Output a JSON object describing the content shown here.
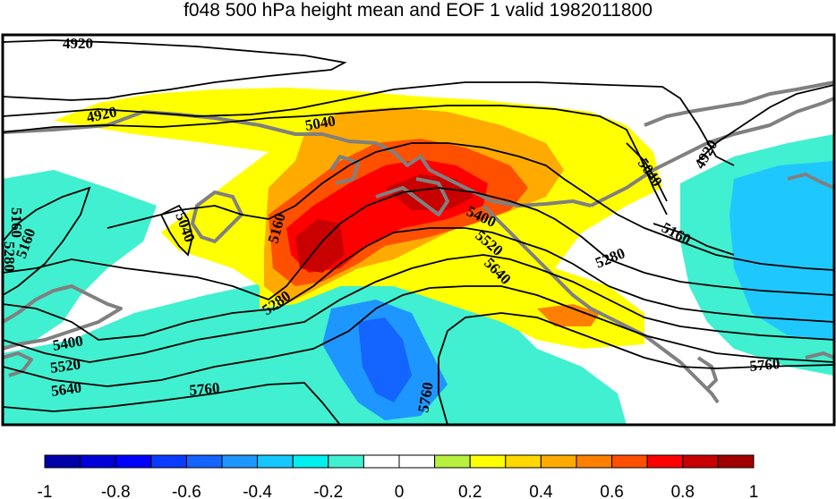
{
  "title": "f048 500 hPa height mean and EOF 1 valid 1982011800",
  "colorbar": {
    "ticks": [
      "-1",
      "-0.8",
      "-0.6",
      "-0.4",
      "-0.2",
      "0",
      "0.2",
      "0.4",
      "0.6",
      "0.8",
      "1"
    ],
    "colors": [
      "#0000a8",
      "#0000d8",
      "#0000ff",
      "#0a3cff",
      "#1464ff",
      "#1e96ff",
      "#14c8ff",
      "#00f0f0",
      "#40f0d0",
      "#ffffff",
      "#ffffff",
      "#b8f040",
      "#ffff00",
      "#ffd800",
      "#ffaa00",
      "#ff8000",
      "#ff5000",
      "#ff0000",
      "#c80000",
      "#a00000"
    ]
  },
  "contour_labels": [
    "4920",
    "4920",
    "5040",
    "5040",
    "5040",
    "5160",
    "5160",
    "5160",
    "5160",
    "5280",
    "5280",
    "5280",
    "5400",
    "5400",
    "5520",
    "5520",
    "5640",
    "5640",
    "5760",
    "5760",
    "5760",
    "4920"
  ],
  "colors": {
    "land_outline": "#808080",
    "contour": "#000000",
    "frame": "#000000"
  }
}
